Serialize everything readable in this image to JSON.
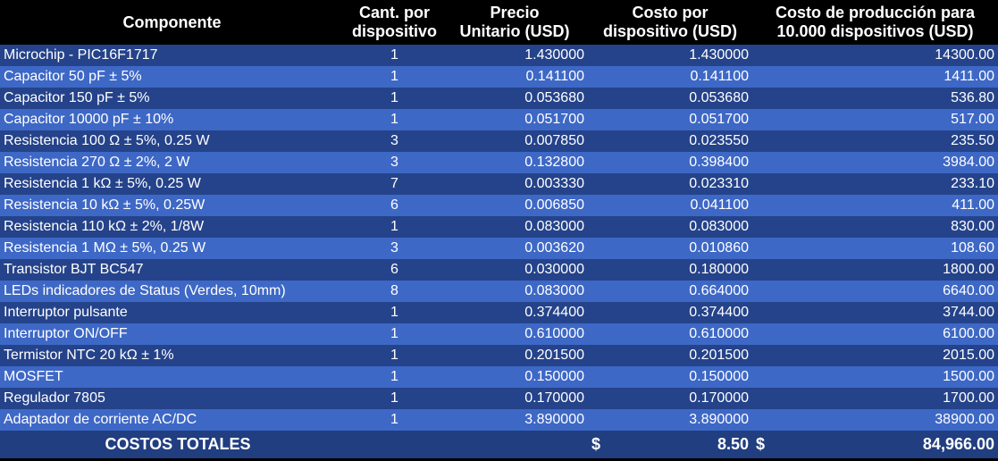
{
  "header": {
    "col1": "Componente",
    "col2_line1": "Cant. por",
    "col2_line2": "dispositivo",
    "col3_line1": "Precio",
    "col3_line2": "Unitario (USD)",
    "col4_line1": "Costo por",
    "col4_line2": "dispositivo  (USD)",
    "col5_line1": "Costo de producción para",
    "col5_line2": "10.000 dispositivos (USD)"
  },
  "rows": [
    {
      "name": "Microchip - PIC16F1717",
      "qty": "1",
      "unit": "1.430000",
      "per": "1.430000",
      "total": "14300.00"
    },
    {
      "name": "Capacitor 50 pF ± 5%",
      "qty": "1",
      "unit": "0.141100",
      "per": "0.141100",
      "total": "1411.00"
    },
    {
      "name": "Capacitor 150 pF ± 5%",
      "qty": "1",
      "unit": "0.053680",
      "per": "0.053680",
      "total": "536.80"
    },
    {
      "name": "Capacitor 10000 pF ± 10%",
      "qty": "1",
      "unit": "0.051700",
      "per": "0.051700",
      "total": "517.00"
    },
    {
      "name": "Resistencia 100 Ω ± 5%, 0.25 W",
      "qty": "3",
      "unit": "0.007850",
      "per": "0.023550",
      "total": "235.50"
    },
    {
      "name": "Resistencia 270 Ω ± 2%, 2 W",
      "qty": "3",
      "unit": "0.132800",
      "per": "0.398400",
      "total": "3984.00"
    },
    {
      "name": "Resistencia 1 kΩ ± 5%, 0.25 W",
      "qty": "7",
      "unit": "0.003330",
      "per": "0.023310",
      "total": "233.10"
    },
    {
      "name": "Resistencia 10 kΩ ± 5%, 0.25W",
      "qty": "6",
      "unit": "0.006850",
      "per": "0.041100",
      "total": "411.00"
    },
    {
      "name": "Resistencia 110 kΩ ± 2%, 1/8W",
      "qty": "1",
      "unit": "0.083000",
      "per": "0.083000",
      "total": "830.00"
    },
    {
      "name": "Resistencia 1 MΩ ± 5%, 0.25 W",
      "qty": "3",
      "unit": "0.003620",
      "per": "0.010860",
      "total": "108.60"
    },
    {
      "name": "Transistor BJT BC547",
      "qty": "6",
      "unit": "0.030000",
      "per": "0.180000",
      "total": "1800.00"
    },
    {
      "name": "LEDs indicadores de Status (Verdes, 10mm)",
      "qty": "8",
      "unit": "0.083000",
      "per": "0.664000",
      "total": "6640.00"
    },
    {
      "name": "Interruptor pulsante",
      "qty": "1",
      "unit": "0.374400",
      "per": "0.374400",
      "total": "3744.00"
    },
    {
      "name": "Interruptor ON/OFF",
      "qty": "1",
      "unit": "0.610000",
      "per": "0.610000",
      "total": "6100.00"
    },
    {
      "name": "Termistor NTC 20 kΩ ± 1%",
      "qty": "1",
      "unit": "0.201500",
      "per": "0.201500",
      "total": "2015.00"
    },
    {
      "name": "MOSFET",
      "qty": "1",
      "unit": "0.150000",
      "per": "0.150000",
      "total": "1500.00"
    },
    {
      "name": "Regulador 7805",
      "qty": "1",
      "unit": "0.170000",
      "per": "0.170000",
      "total": "1700.00"
    },
    {
      "name": "Adaptador de corriente AC/DC",
      "qty": "1",
      "unit": "3.890000",
      "per": "3.890000",
      "total": "38900.00"
    }
  ],
  "footer": {
    "label": "COSTOS TOTALES",
    "currency1": "$",
    "per_device_total": "8.50",
    "currency2": "$",
    "grand_total": "84,966.00"
  }
}
